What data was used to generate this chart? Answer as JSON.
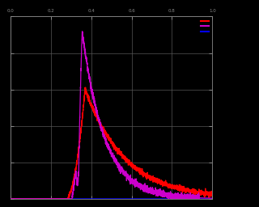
{
  "background_color": "#000000",
  "plot_bg_color": "#000000",
  "grid_color": "#555555",
  "line1_color": "#ff0000",
  "line2_color": "#cc00cc",
  "line3_color": "#0000ff",
  "xlim": [
    0,
    1
  ],
  "ylim": [
    0,
    1
  ],
  "figsize": [
    3.2,
    2.56
  ],
  "dpi": 100
}
